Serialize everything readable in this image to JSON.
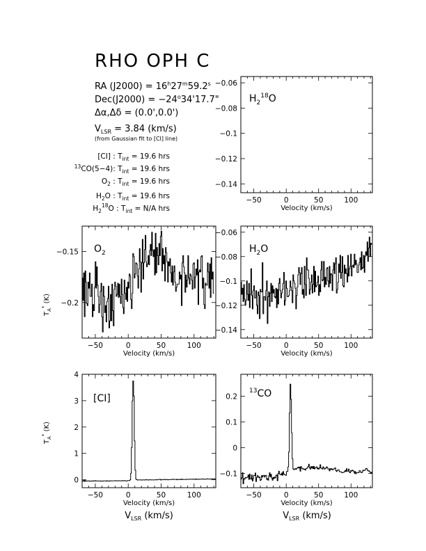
{
  "header": {
    "title": "RHO OPH C",
    "ra": "RA (J2000) = 16h27m59.2s",
    "dec": "Dec(J2000) = -24°34'17.7\"",
    "offset": "Δα,Δδ = (0.0',0.0')",
    "vlsr": "VLSR = 3.84 (km/s)",
    "fit_note": "(from Gaussian fit to [CI] line)",
    "int_times": [
      {
        "line": "[CI]",
        "text": "[CI] : Tint = 19.6 hrs"
      },
      {
        "line": "13CO(5-4)",
        "text": "13CO(5-4): Tint = 19.6 hrs"
      },
      {
        "line": "O2",
        "text": "O2 : Tint = 19.6 hrs"
      },
      {
        "line": "H2O",
        "text": "H2O : Tint = 19.6 hrs"
      },
      {
        "line": "H218O",
        "text": "H218O : Tint = N/A hrs"
      }
    ]
  },
  "chart_data": [
    {
      "id": "h218o",
      "type": "line",
      "label": "H218O",
      "xlabel": "Velocity (km/s)",
      "ylabel": "",
      "xlim": [
        -70,
        133
      ],
      "ylim": [
        -0.147,
        -0.055
      ],
      "xticks": [
        -50,
        0,
        50,
        100
      ],
      "yticks": [
        -0.06,
        -0.08,
        -0.1,
        -0.12,
        -0.14
      ],
      "ytick_side": "left",
      "series": []
    },
    {
      "id": "o2",
      "type": "line",
      "label": "O2",
      "xlabel": "Velocity (km/s)",
      "ylabel": "TA* (K)",
      "xlim": [
        -70,
        133
      ],
      "ylim": [
        -0.235,
        -0.125
      ],
      "xticks": [
        -50,
        0,
        50,
        100
      ],
      "yticks": [
        -0.15,
        -0.2
      ],
      "ytick_side": "left",
      "series": [
        {
          "x_start": -70,
          "x_step": 1.1,
          "values": [
            -0.176,
            -0.198,
            -0.171,
            -0.214,
            -0.169,
            -0.18,
            -0.201,
            -0.203,
            -0.18,
            -0.186,
            -0.171,
            -0.194,
            -0.194,
            -0.182,
            -0.214,
            -0.202,
            -0.208,
            -0.185,
            -0.16,
            -0.186,
            -0.165,
            -0.183,
            -0.194,
            -0.21,
            -0.202,
            -0.189,
            -0.181,
            -0.214,
            -0.229,
            -0.184,
            -0.194,
            -0.21,
            -0.203,
            -0.219,
            -0.199,
            -0.196,
            -0.184,
            -0.225,
            -0.218,
            -0.192,
            -0.218,
            -0.182,
            -0.208,
            -0.223,
            -0.187,
            -0.18,
            -0.184,
            -0.194,
            -0.192,
            -0.181,
            -0.195,
            -0.182,
            -0.194,
            -0.201,
            -0.177,
            -0.192,
            -0.205,
            -0.211,
            -0.178,
            -0.191,
            -0.197,
            -0.185,
            -0.199,
            -0.18,
            -0.186,
            -0.172,
            -0.174,
            -0.197,
            -0.206,
            -0.191,
            -0.152,
            -0.155,
            -0.176,
            -0.172,
            -0.161,
            -0.162,
            -0.174,
            -0.186,
            -0.167,
            -0.147,
            -0.16,
            -0.19,
            -0.161,
            -0.138,
            -0.177,
            -0.161,
            -0.148,
            -0.134,
            -0.16,
            -0.165,
            -0.162,
            -0.154,
            -0.163,
            -0.149,
            -0.143,
            -0.154,
            -0.131,
            -0.149,
            -0.155,
            -0.148,
            -0.173,
            -0.132,
            -0.171,
            -0.146,
            -0.154,
            -0.163,
            -0.142,
            -0.154,
            -0.135,
            -0.13,
            -0.169,
            -0.147,
            -0.162,
            -0.154,
            -0.179,
            -0.146,
            -0.151,
            -0.16,
            -0.18,
            -0.16,
            -0.164,
            -0.157,
            -0.171,
            -0.18,
            -0.164,
            -0.183,
            -0.17,
            -0.164,
            -0.18,
            -0.189,
            -0.185,
            -0.182,
            -0.182,
            -0.182,
            -0.17,
            -0.177,
            -0.173,
            -0.203,
            -0.161,
            -0.154,
            -0.165,
            -0.171,
            -0.19,
            -0.173,
            -0.185,
            -0.178,
            -0.154,
            -0.176,
            -0.182,
            -0.172,
            -0.174,
            -0.178,
            -0.187,
            -0.162,
            -0.161,
            -0.186,
            -0.175,
            -0.167,
            -0.173,
            -0.158,
            -0.202,
            -0.17,
            -0.168,
            -0.17,
            -0.155,
            -0.154,
            -0.186,
            -0.176,
            -0.202,
            -0.206,
            -0.181,
            -0.183,
            -0.183,
            -0.161,
            -0.17,
            -0.186,
            -0.162,
            -0.195,
            -0.156,
            -0.177,
            -0.17,
            -0.191
          ]
        }
      ]
    },
    {
      "id": "h2o",
      "type": "line",
      "label": "H2O",
      "xlabel": "Velocity (km/s)",
      "ylabel": "",
      "xlim": [
        -70,
        133
      ],
      "ylim": [
        -0.147,
        -0.055
      ],
      "xticks": [
        -50,
        0,
        50,
        100
      ],
      "yticks": [
        -0.06,
        -0.08,
        -0.1,
        -0.12,
        -0.14
      ],
      "ytick_side": "left",
      "series": [
        {
          "x_start": -70,
          "x_step": 1.1,
          "values": [
            -0.101,
            -0.111,
            -0.106,
            -0.117,
            -0.103,
            -0.115,
            -0.12,
            -0.116,
            -0.1,
            -0.111,
            -0.116,
            -0.102,
            -0.122,
            -0.111,
            -0.09,
            -0.112,
            -0.123,
            -0.108,
            -0.104,
            -0.114,
            -0.114,
            -0.108,
            -0.12,
            -0.127,
            -0.109,
            -0.112,
            -0.131,
            -0.107,
            -0.109,
            -0.109,
            -0.085,
            -0.127,
            -0.113,
            -0.113,
            -0.116,
            -0.108,
            -0.1,
            -0.135,
            -0.113,
            -0.109,
            -0.121,
            -0.11,
            -0.102,
            -0.117,
            -0.104,
            -0.11,
            -0.107,
            -0.113,
            -0.114,
            -0.106,
            -0.122,
            -0.107,
            -0.119,
            -0.102,
            -0.098,
            -0.108,
            -0.114,
            -0.11,
            -0.107,
            -0.102,
            -0.093,
            -0.12,
            -0.116,
            -0.1,
            -0.106,
            -0.113,
            -0.113,
            -0.112,
            -0.108,
            -0.1,
            -0.105,
            -0.108,
            -0.118,
            -0.095,
            -0.1,
            -0.102,
            -0.106,
            -0.123,
            -0.112,
            -0.105,
            -0.095,
            -0.089,
            -0.093,
            -0.103,
            -0.094,
            -0.089,
            -0.111,
            -0.107,
            -0.114,
            -0.088,
            -0.103,
            -0.112,
            -0.081,
            -0.091,
            -0.091,
            -0.098,
            -0.111,
            -0.107,
            -0.101,
            -0.095,
            -0.11,
            -0.103,
            -0.088,
            -0.109,
            -0.092,
            -0.105,
            -0.104,
            -0.101,
            -0.096,
            -0.112,
            -0.103,
            -0.109,
            -0.091,
            -0.084,
            -0.1,
            -0.099,
            -0.084,
            -0.105,
            -0.097,
            -0.103,
            -0.09,
            -0.089,
            -0.1,
            -0.105,
            -0.088,
            -0.102,
            -0.094,
            -0.095,
            -0.108,
            -0.091,
            -0.085,
            -0.094,
            -0.086,
            -0.081,
            -0.11,
            -0.107,
            -0.101,
            -0.086,
            -0.093,
            -0.079,
            -0.098,
            -0.093,
            -0.08,
            -0.104,
            -0.105,
            -0.087,
            -0.094,
            -0.09,
            -0.094,
            -0.101,
            -0.079,
            -0.096,
            -0.09,
            -0.088,
            -0.078,
            -0.096,
            -0.088,
            -0.087,
            -0.089,
            -0.078,
            -0.087,
            -0.083,
            -0.086,
            -0.093,
            -0.093,
            -0.087,
            -0.085,
            -0.081,
            -0.091,
            -0.076,
            -0.09,
            -0.089,
            -0.079,
            -0.093,
            -0.08,
            -0.076,
            -0.079,
            -0.068,
            -0.084,
            -0.073,
            -0.064,
            -0.08,
            -0.069,
            -0.07
          ]
        }
      ]
    },
    {
      "id": "ci",
      "type": "line",
      "label": "[CI]",
      "xlabel": "Velocity (km/s)",
      "xlabel2": "VLSR (km/s)",
      "ylabel": "TA* (K)",
      "xlim": [
        -70,
        133
      ],
      "ylim": [
        -0.3,
        4.0
      ],
      "xticks": [
        -50,
        0,
        50,
        100
      ],
      "yticks": [
        0,
        1,
        2,
        3,
        4
      ],
      "ytick_side": "left",
      "series": [
        {
          "x_start": -70,
          "x_step": 1.1,
          "values": [
            -0.054,
            -0.04,
            -0.024,
            -0.064,
            -0.032,
            -0.044,
            -0.049,
            -0.045,
            -0.047,
            -0.039,
            -0.051,
            -0.053,
            -0.047,
            -0.052,
            -0.043,
            -0.035,
            -0.049,
            -0.049,
            -0.034,
            -0.047,
            -0.043,
            -0.048,
            -0.045,
            -0.045,
            -0.048,
            -0.052,
            -0.041,
            -0.049,
            -0.052,
            -0.041,
            -0.04,
            -0.043,
            -0.042,
            -0.051,
            -0.036,
            -0.041,
            -0.041,
            -0.053,
            -0.044,
            -0.037,
            -0.042,
            -0.043,
            -0.04,
            -0.038,
            -0.04,
            -0.038,
            -0.029,
            -0.038,
            -0.038,
            -0.041,
            -0.034,
            -0.035,
            -0.038,
            -0.039,
            -0.042,
            -0.032,
            -0.037,
            -0.038,
            -0.032,
            -0.036,
            -0.044,
            -0.046,
            -0.035,
            -0.032,
            -0.03,
            -0.03,
            0.002,
            0.247,
            1.226,
            2.986,
            3.747,
            3.173,
            1.476,
            0.362,
            0.028,
            0.004,
            -0.009,
            -0.008,
            -0.005,
            -0.006,
            -0.005,
            -0.003,
            -0.012,
            -0.008,
            -0.001,
            -0.003,
            -0.011,
            -0.002,
            0.005,
            -0.001,
            0.0,
            -0.009,
            -0.007,
            0.004,
            0.0,
            -0.008,
            -0.001,
            -0.001,
            -0.007,
            -0.006,
            -0.005,
            0.003,
            0.002,
            -0.005,
            0.007,
            0.008,
            0.013,
            0.016,
            -0.007,
            0.007,
            0.002,
            0.002,
            0.013,
            0.011,
            0.015,
            0.001,
            0.01,
            0.01,
            -0.001,
            0.004,
            0.003,
            0.005,
            0.012,
            0.015,
            0.011,
            0.022,
            0.013,
            0.013,
            0.015,
            0.014,
            0.001,
            0.018,
            0.008,
            0.007,
            0.014,
            0.005,
            0.022,
            0.012,
            0.022,
            0.011,
            0.013,
            0.013,
            0.009,
            0.009,
            0.021,
            0.02,
            0.016,
            0.016,
            0.024,
            0.017,
            0.018,
            0.025,
            0.018,
            0.029,
            0.025,
            0.017,
            0.009,
            0.032,
            0.018,
            0.024,
            0.013,
            0.019,
            0.026,
            0.023,
            0.024,
            0.027,
            0.032,
            0.025,
            0.026,
            0.018,
            0.018,
            0.018,
            0.039,
            0.033,
            0.031,
            0.026,
            0.021,
            0.029,
            0.027,
            0.034,
            0.033,
            0.033,
            0.037,
            0.031,
            0.027,
            0.034
          ]
        }
      ]
    },
    {
      "id": "13co",
      "type": "line",
      "label": "13CO",
      "xlabel": "Velocity (km/s)",
      "xlabel2": "VLSR (km/s)",
      "ylabel": "",
      "xlim": [
        -70,
        133
      ],
      "ylim": [
        -0.155,
        0.285
      ],
      "xticks": [
        -50,
        0,
        50,
        100
      ],
      "yticks": [
        0.2,
        0.1,
        0,
        -0.1
      ],
      "ytick_side": "left",
      "series": [
        {
          "x_start": -70,
          "x_step": 1.1,
          "values": [
            -0.122,
            -0.116,
            -0.097,
            -0.14,
            -0.12,
            -0.122,
            -0.115,
            -0.117,
            -0.116,
            -0.114,
            -0.106,
            -0.123,
            -0.102,
            -0.119,
            -0.122,
            -0.106,
            -0.129,
            -0.12,
            -0.107,
            -0.108,
            -0.098,
            -0.131,
            -0.116,
            -0.108,
            -0.111,
            -0.116,
            -0.114,
            -0.127,
            -0.124,
            -0.108,
            -0.114,
            -0.108,
            -0.107,
            -0.114,
            -0.108,
            -0.107,
            -0.123,
            -0.12,
            -0.126,
            -0.109,
            -0.097,
            -0.113,
            -0.103,
            -0.118,
            -0.126,
            -0.115,
            -0.12,
            -0.114,
            -0.117,
            -0.107,
            -0.105,
            -0.128,
            -0.1,
            -0.091,
            -0.101,
            -0.105,
            -0.105,
            -0.098,
            -0.107,
            -0.092,
            -0.102,
            -0.104,
            -0.106,
            -0.107,
            -0.092,
            -0.092,
            -0.074,
            -0.017,
            0.135,
            0.247,
            0.188,
            0.058,
            -0.043,
            -0.082,
            -0.085,
            -0.083,
            -0.081,
            -0.084,
            -0.08,
            -0.079,
            -0.075,
            -0.079,
            -0.075,
            -0.091,
            -0.073,
            -0.079,
            -0.082,
            -0.081,
            -0.084,
            -0.083,
            -0.087,
            -0.081,
            -0.081,
            -0.077,
            -0.073,
            -0.064,
            -0.078,
            -0.083,
            -0.073,
            -0.079,
            -0.073,
            -0.081,
            -0.072,
            -0.082,
            -0.078,
            -0.076,
            -0.074,
            -0.082,
            -0.079,
            -0.083,
            -0.078,
            -0.066,
            -0.079,
            -0.08,
            -0.083,
            -0.074,
            -0.078,
            -0.083,
            -0.081,
            -0.078,
            -0.074,
            -0.077,
            -0.083,
            -0.082,
            -0.09,
            -0.081,
            -0.084,
            -0.081,
            -0.086,
            -0.085,
            -0.082,
            -0.08,
            -0.078,
            -0.089,
            -0.092,
            -0.087,
            -0.087,
            -0.086,
            -0.093,
            -0.093,
            -0.093,
            -0.096,
            -0.097,
            -0.096,
            -0.095,
            -0.093,
            -0.088,
            -0.092,
            -0.081,
            -0.091,
            -0.091,
            -0.083,
            -0.095,
            -0.097,
            -0.089,
            -0.091,
            -0.087,
            -0.089,
            -0.091,
            -0.099,
            -0.092,
            -0.101,
            -0.097,
            -0.096,
            -0.096,
            -0.097,
            -0.089,
            -0.09,
            -0.096,
            -0.097,
            -0.094,
            -0.087,
            -0.089,
            -0.088,
            -0.086,
            -0.081,
            -0.08,
            -0.086,
            -0.09,
            -0.089,
            -0.093,
            -0.094,
            -0.1,
            -0.096,
            -0.094,
            -0.092
          ]
        }
      ]
    }
  ]
}
